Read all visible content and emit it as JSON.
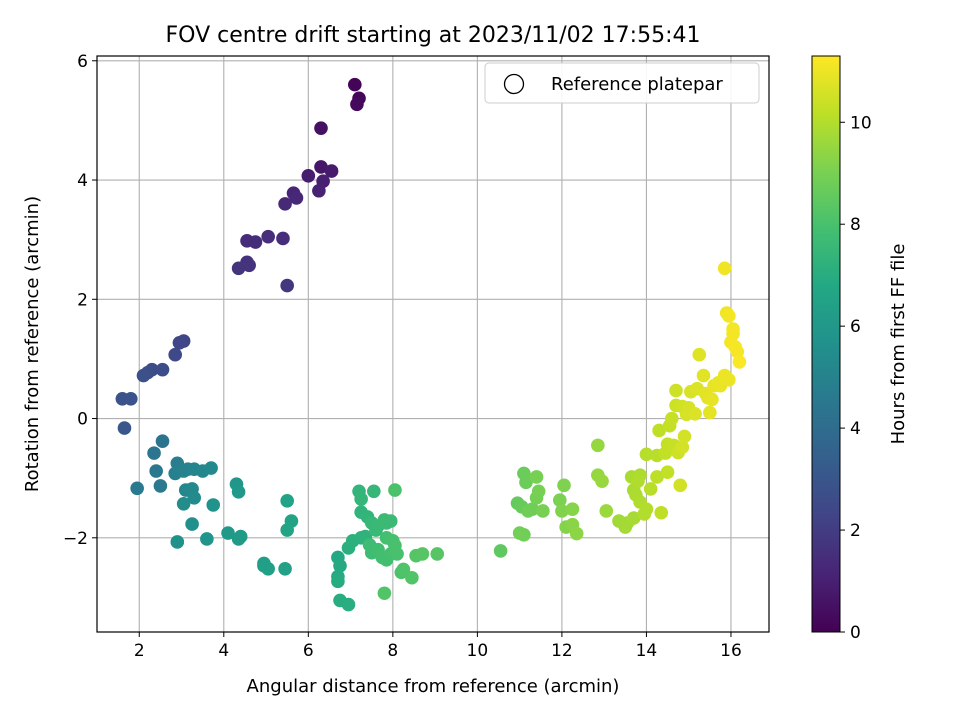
{
  "chart_data": {
    "type": "scatter",
    "title": "FOV centre drift starting at 2023/11/02 17:55:41",
    "xlabel": "Angular distance from reference (arcmin)",
    "ylabel": "Rotation from reference (arcmin)",
    "xlim": [
      1.0,
      16.9
    ],
    "ylim": [
      -3.58,
      6.08
    ],
    "xticks": [
      2,
      4,
      6,
      8,
      10,
      12,
      14,
      16
    ],
    "yticks": [
      -2,
      0,
      2,
      4,
      6
    ],
    "ytick_labels": [
      "−2",
      "0",
      "2",
      "4",
      "6"
    ],
    "grid": true,
    "legend": {
      "position": "top-right",
      "entries": [
        {
          "label": "Reference platepar",
          "marker": "open-circle"
        }
      ]
    },
    "colorbar": {
      "label": "Hours from first FF file",
      "colormap": "viridis",
      "range": [
        0,
        11.3
      ],
      "ticks": [
        0,
        2,
        4,
        6,
        8,
        10
      ]
    },
    "series": [
      {
        "points": [
          {
            "x": 7.1,
            "y": 5.6,
            "c": 0.1
          },
          {
            "x": 7.2,
            "y": 5.37,
            "c": 0.2
          },
          {
            "x": 7.15,
            "y": 5.27,
            "c": 0.3
          },
          {
            "x": 6.3,
            "y": 4.87,
            "c": 0.5
          },
          {
            "x": 6.3,
            "y": 4.22,
            "c": 0.7
          },
          {
            "x": 6.55,
            "y": 4.15,
            "c": 0.8
          },
          {
            "x": 6.0,
            "y": 4.07,
            "c": 0.9
          },
          {
            "x": 6.35,
            "y": 3.98,
            "c": 1.0
          },
          {
            "x": 6.25,
            "y": 3.82,
            "c": 1.1
          },
          {
            "x": 5.65,
            "y": 3.78,
            "c": 1.2
          },
          {
            "x": 5.72,
            "y": 3.7,
            "c": 1.25
          },
          {
            "x": 5.45,
            "y": 3.6,
            "c": 1.3
          },
          {
            "x": 4.55,
            "y": 2.98,
            "c": 1.4
          },
          {
            "x": 4.75,
            "y": 2.96,
            "c": 1.45
          },
          {
            "x": 5.05,
            "y": 3.05,
            "c": 1.5
          },
          {
            "x": 5.4,
            "y": 3.02,
            "c": 1.5
          },
          {
            "x": 4.55,
            "y": 2.62,
            "c": 1.6
          },
          {
            "x": 4.6,
            "y": 2.57,
            "c": 1.65
          },
          {
            "x": 4.35,
            "y": 2.52,
            "c": 1.7
          },
          {
            "x": 5.5,
            "y": 2.23,
            "c": 1.8
          },
          {
            "x": 3.05,
            "y": 1.3,
            "c": 2.3
          },
          {
            "x": 2.95,
            "y": 1.27,
            "c": 2.35
          },
          {
            "x": 2.85,
            "y": 1.07,
            "c": 2.45
          },
          {
            "x": 2.3,
            "y": 0.82,
            "c": 2.6
          },
          {
            "x": 2.55,
            "y": 0.82,
            "c": 2.65
          },
          {
            "x": 2.2,
            "y": 0.77,
            "c": 2.7
          },
          {
            "x": 2.1,
            "y": 0.72,
            "c": 2.75
          },
          {
            "x": 1.6,
            "y": 0.33,
            "c": 2.9
          },
          {
            "x": 1.8,
            "y": 0.33,
            "c": 2.95
          },
          {
            "x": 1.65,
            "y": -0.16,
            "c": 3.05
          },
          {
            "x": 2.55,
            "y": -0.38,
            "c": 4.3
          },
          {
            "x": 2.35,
            "y": -0.58,
            "c": 4.4
          },
          {
            "x": 2.4,
            "y": -0.88,
            "c": 4.5
          },
          {
            "x": 2.5,
            "y": -1.13,
            "c": 4.55
          },
          {
            "x": 1.95,
            "y": -1.17,
            "c": 4.6
          },
          {
            "x": 2.9,
            "y": -0.75,
            "c": 4.8
          },
          {
            "x": 2.85,
            "y": -0.92,
            "c": 4.9
          },
          {
            "x": 3.05,
            "y": -0.88,
            "c": 5.0
          },
          {
            "x": 3.15,
            "y": -0.85,
            "c": 5.0
          },
          {
            "x": 3.3,
            "y": -0.85,
            "c": 5.1
          },
          {
            "x": 3.5,
            "y": -0.88,
            "c": 5.2
          },
          {
            "x": 3.7,
            "y": -0.83,
            "c": 5.3
          },
          {
            "x": 3.1,
            "y": -1.2,
            "c": 5.2
          },
          {
            "x": 3.25,
            "y": -1.18,
            "c": 5.3
          },
          {
            "x": 3.3,
            "y": -1.33,
            "c": 5.4
          },
          {
            "x": 3.05,
            "y": -1.43,
            "c": 5.45
          },
          {
            "x": 3.25,
            "y": -1.77,
            "c": 5.6
          },
          {
            "x": 2.9,
            "y": -2.07,
            "c": 5.65
          },
          {
            "x": 3.75,
            "y": -1.45,
            "c": 5.7
          },
          {
            "x": 3.6,
            "y": -2.02,
            "c": 5.8
          },
          {
            "x": 4.3,
            "y": -1.1,
            "c": 5.9
          },
          {
            "x": 4.35,
            "y": -1.23,
            "c": 6.0
          },
          {
            "x": 4.1,
            "y": -1.92,
            "c": 6.05
          },
          {
            "x": 4.35,
            "y": -2.02,
            "c": 6.1
          },
          {
            "x": 4.4,
            "y": -1.98,
            "c": 6.15
          },
          {
            "x": 4.95,
            "y": -2.43,
            "c": 6.3
          },
          {
            "x": 4.95,
            "y": -2.47,
            "c": 6.35
          },
          {
            "x": 5.05,
            "y": -2.52,
            "c": 6.4
          },
          {
            "x": 5.45,
            "y": -2.52,
            "c": 6.45
          },
          {
            "x": 5.5,
            "y": -1.38,
            "c": 6.5
          },
          {
            "x": 5.6,
            "y": -1.72,
            "c": 6.55
          },
          {
            "x": 5.5,
            "y": -1.87,
            "c": 6.6
          },
          {
            "x": 6.7,
            "y": -2.33,
            "c": 6.8
          },
          {
            "x": 6.75,
            "y": -2.47,
            "c": 6.85
          },
          {
            "x": 6.7,
            "y": -2.65,
            "c": 6.9
          },
          {
            "x": 6.7,
            "y": -2.73,
            "c": 6.95
          },
          {
            "x": 6.75,
            "y": -3.05,
            "c": 7.0
          },
          {
            "x": 6.95,
            "y": -3.12,
            "c": 7.05
          },
          {
            "x": 6.95,
            "y": -2.17,
            "c": 7.1
          },
          {
            "x": 7.05,
            "y": -2.05,
            "c": 7.15
          },
          {
            "x": 7.25,
            "y": -2.0,
            "c": 7.2
          },
          {
            "x": 7.35,
            "y": -1.98,
            "c": 7.25
          },
          {
            "x": 7.25,
            "y": -1.57,
            "c": 7.3
          },
          {
            "x": 7.4,
            "y": -1.65,
            "c": 7.35
          },
          {
            "x": 7.2,
            "y": -1.22,
            "c": 7.35
          },
          {
            "x": 7.25,
            "y": -1.35,
            "c": 7.4
          },
          {
            "x": 7.55,
            "y": -1.22,
            "c": 7.45
          },
          {
            "x": 7.5,
            "y": -1.75,
            "c": 7.5
          },
          {
            "x": 7.6,
            "y": -1.87,
            "c": 7.55
          },
          {
            "x": 7.65,
            "y": -1.8,
            "c": 7.55
          },
          {
            "x": 7.8,
            "y": -1.7,
            "c": 7.6
          },
          {
            "x": 7.85,
            "y": -1.75,
            "c": 7.6
          },
          {
            "x": 7.95,
            "y": -1.72,
            "c": 7.65
          },
          {
            "x": 7.45,
            "y": -2.12,
            "c": 7.7
          },
          {
            "x": 7.5,
            "y": -2.25,
            "c": 7.75
          },
          {
            "x": 7.65,
            "y": -2.2,
            "c": 7.8
          },
          {
            "x": 7.75,
            "y": -2.33,
            "c": 7.85
          },
          {
            "x": 7.85,
            "y": -2.37,
            "c": 7.85
          },
          {
            "x": 7.95,
            "y": -2.27,
            "c": 7.9
          },
          {
            "x": 7.85,
            "y": -2.0,
            "c": 7.9
          },
          {
            "x": 8.0,
            "y": -2.05,
            "c": 7.95
          },
          {
            "x": 8.05,
            "y": -2.13,
            "c": 8.0
          },
          {
            "x": 8.1,
            "y": -2.27,
            "c": 8.0
          },
          {
            "x": 8.05,
            "y": -1.2,
            "c": 8.05
          },
          {
            "x": 8.2,
            "y": -2.58,
            "c": 8.1
          },
          {
            "x": 8.25,
            "y": -2.53,
            "c": 8.15
          },
          {
            "x": 8.45,
            "y": -2.67,
            "c": 8.2
          },
          {
            "x": 7.8,
            "y": -2.93,
            "c": 8.2
          },
          {
            "x": 8.55,
            "y": -2.3,
            "c": 8.25
          },
          {
            "x": 8.7,
            "y": -2.27,
            "c": 8.3
          },
          {
            "x": 9.05,
            "y": -2.27,
            "c": 8.3
          },
          {
            "x": 10.55,
            "y": -2.22,
            "c": 8.5
          },
          {
            "x": 10.95,
            "y": -1.42,
            "c": 8.6
          },
          {
            "x": 11.05,
            "y": -1.48,
            "c": 8.65
          },
          {
            "x": 11.1,
            "y": -0.92,
            "c": 8.7
          },
          {
            "x": 11.15,
            "y": -1.07,
            "c": 8.75
          },
          {
            "x": 11.2,
            "y": -1.55,
            "c": 8.8
          },
          {
            "x": 11.3,
            "y": -1.52,
            "c": 8.8
          },
          {
            "x": 11.0,
            "y": -1.92,
            "c": 8.85
          },
          {
            "x": 11.1,
            "y": -1.95,
            "c": 8.85
          },
          {
            "x": 11.4,
            "y": -1.33,
            "c": 8.9
          },
          {
            "x": 11.4,
            "y": -0.98,
            "c": 8.95
          },
          {
            "x": 11.45,
            "y": -1.22,
            "c": 8.95
          },
          {
            "x": 11.55,
            "y": -1.55,
            "c": 9.0
          },
          {
            "x": 11.95,
            "y": -1.37,
            "c": 9.05
          },
          {
            "x": 12.05,
            "y": -1.12,
            "c": 9.1
          },
          {
            "x": 12.0,
            "y": -1.55,
            "c": 9.15
          },
          {
            "x": 12.1,
            "y": -1.82,
            "c": 9.2
          },
          {
            "x": 12.25,
            "y": -1.52,
            "c": 9.25
          },
          {
            "x": 12.25,
            "y": -1.78,
            "c": 9.3
          },
          {
            "x": 12.35,
            "y": -1.93,
            "c": 9.35
          },
          {
            "x": 12.85,
            "y": -0.45,
            "c": 9.5
          },
          {
            "x": 12.85,
            "y": -0.95,
            "c": 9.5
          },
          {
            "x": 12.95,
            "y": -1.05,
            "c": 9.55
          },
          {
            "x": 13.05,
            "y": -1.55,
            "c": 9.6
          },
          {
            "x": 13.35,
            "y": -1.72,
            "c": 9.7
          },
          {
            "x": 13.5,
            "y": -1.82,
            "c": 9.75
          },
          {
            "x": 13.55,
            "y": -1.75,
            "c": 9.75
          },
          {
            "x": 13.7,
            "y": -1.67,
            "c": 9.8
          },
          {
            "x": 13.65,
            "y": -0.98,
            "c": 9.85
          },
          {
            "x": 13.7,
            "y": -1.2,
            "c": 9.85
          },
          {
            "x": 13.75,
            "y": -1.28,
            "c": 9.9
          },
          {
            "x": 13.85,
            "y": -0.95,
            "c": 9.9
          },
          {
            "x": 13.8,
            "y": -1.05,
            "c": 9.95
          },
          {
            "x": 13.85,
            "y": -1.4,
            "c": 9.95
          },
          {
            "x": 13.95,
            "y": -1.6,
            "c": 10.0
          },
          {
            "x": 14.0,
            "y": -1.52,
            "c": 10.0
          },
          {
            "x": 14.0,
            "y": -0.6,
            "c": 10.05
          },
          {
            "x": 14.1,
            "y": -1.18,
            "c": 10.1
          },
          {
            "x": 14.25,
            "y": -0.62,
            "c": 10.1
          },
          {
            "x": 14.25,
            "y": -0.98,
            "c": 10.15
          },
          {
            "x": 14.3,
            "y": -0.2,
            "c": 10.2
          },
          {
            "x": 14.35,
            "y": -1.58,
            "c": 10.2
          },
          {
            "x": 14.45,
            "y": -0.58,
            "c": 10.25
          },
          {
            "x": 14.5,
            "y": -0.9,
            "c": 10.25
          },
          {
            "x": 14.5,
            "y": -0.43,
            "c": 10.3
          },
          {
            "x": 14.55,
            "y": -0.12,
            "c": 10.3
          },
          {
            "x": 14.6,
            "y": 0.0,
            "c": 10.35
          },
          {
            "x": 14.65,
            "y": -0.45,
            "c": 10.35
          },
          {
            "x": 14.7,
            "y": 0.22,
            "c": 10.4
          },
          {
            "x": 14.7,
            "y": 0.47,
            "c": 10.45
          },
          {
            "x": 14.75,
            "y": -0.57,
            "c": 10.45
          },
          {
            "x": 14.8,
            "y": -1.12,
            "c": 10.5
          },
          {
            "x": 14.85,
            "y": 0.2,
            "c": 10.5
          },
          {
            "x": 14.85,
            "y": -0.48,
            "c": 10.55
          },
          {
            "x": 14.9,
            "y": -0.3,
            "c": 10.55
          },
          {
            "x": 14.95,
            "y": 0.07,
            "c": 10.6
          },
          {
            "x": 15.0,
            "y": 0.18,
            "c": 10.6
          },
          {
            "x": 15.05,
            "y": 0.45,
            "c": 10.65
          },
          {
            "x": 15.15,
            "y": 0.08,
            "c": 10.7
          },
          {
            "x": 15.2,
            "y": 0.5,
            "c": 10.7
          },
          {
            "x": 15.25,
            "y": 1.07,
            "c": 10.75
          },
          {
            "x": 15.35,
            "y": 0.72,
            "c": 10.8
          },
          {
            "x": 15.4,
            "y": 0.42,
            "c": 10.8
          },
          {
            "x": 15.45,
            "y": 0.35,
            "c": 10.85
          },
          {
            "x": 15.5,
            "y": 0.1,
            "c": 10.85
          },
          {
            "x": 15.55,
            "y": 0.32,
            "c": 10.9
          },
          {
            "x": 15.6,
            "y": 0.55,
            "c": 10.9
          },
          {
            "x": 15.7,
            "y": 0.6,
            "c": 10.95
          },
          {
            "x": 15.75,
            "y": 0.55,
            "c": 10.95
          },
          {
            "x": 15.85,
            "y": 0.72,
            "c": 11.0
          },
          {
            "x": 15.95,
            "y": 0.65,
            "c": 11.0
          },
          {
            "x": 15.85,
            "y": 2.52,
            "c": 11.05
          },
          {
            "x": 15.9,
            "y": 1.77,
            "c": 11.05
          },
          {
            "x": 15.95,
            "y": 1.72,
            "c": 11.1
          },
          {
            "x": 16.05,
            "y": 1.5,
            "c": 11.1
          },
          {
            "x": 16.05,
            "y": 1.42,
            "c": 11.15
          },
          {
            "x": 16.0,
            "y": 1.28,
            "c": 11.15
          },
          {
            "x": 16.1,
            "y": 1.2,
            "c": 11.2
          },
          {
            "x": 16.15,
            "y": 1.12,
            "c": 11.2
          },
          {
            "x": 16.2,
            "y": 0.95,
            "c": 11.25
          }
        ]
      }
    ]
  }
}
